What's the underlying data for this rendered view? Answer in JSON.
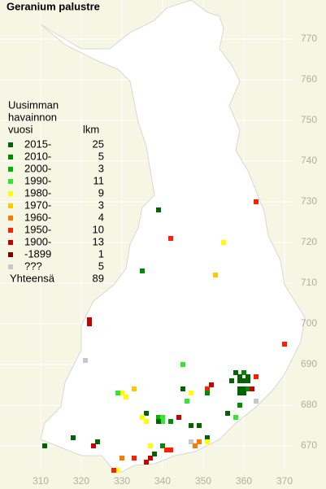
{
  "title": "Geranium palustre",
  "legend": {
    "heading": [
      "Uusimman",
      "havainnon",
      "vuosi"
    ],
    "count_heading": "lkm",
    "classes": [
      {
        "label": "2015-",
        "color": "#006400",
        "count": 25
      },
      {
        "label": "2010-",
        "color": "#008c00",
        "count": 5
      },
      {
        "label": "2000-",
        "color": "#00b400",
        "count": 3
      },
      {
        "label": "1990-",
        "color": "#33e633",
        "count": 11
      },
      {
        "label": "1980-",
        "color": "#ffff00",
        "count": 9
      },
      {
        "label": "1970-",
        "color": "#ffc800",
        "count": 3
      },
      {
        "label": "1960-",
        "color": "#ff7800",
        "count": 4
      },
      {
        "label": "1950-",
        "color": "#ff1e00",
        "count": 10
      },
      {
        "label": "1900-",
        "color": "#c80000",
        "count": 13
      },
      {
        "label": "-1899",
        "color": "#7a0000",
        "count": 1
      },
      {
        "label": "???",
        "color": "#c8c8c8",
        "count": 5
      }
    ],
    "total_label": "Yhteensä",
    "total": 89
  },
  "x_labels": [
    310,
    320,
    330,
    340,
    350,
    360,
    370
  ],
  "y_labels": [
    670,
    680,
    690,
    700,
    710,
    720,
    730,
    740,
    750,
    760,
    770
  ],
  "points": [
    {
      "e": 339,
      "n": 728,
      "class": 0
    },
    {
      "e": 342,
      "n": 721,
      "class": 7
    },
    {
      "e": 363,
      "n": 730,
      "class": 7
    },
    {
      "e": 355,
      "n": 720,
      "class": 4
    },
    {
      "e": 335,
      "n": 713,
      "class": 1
    },
    {
      "e": 353,
      "n": 712,
      "class": 5
    },
    {
      "e": 322,
      "n": 701,
      "class": 8
    },
    {
      "e": 322,
      "n": 700,
      "class": 8
    },
    {
      "e": 370,
      "n": 695,
      "class": 7
    },
    {
      "e": 321,
      "n": 691,
      "class": 10
    },
    {
      "e": 345,
      "n": 690,
      "class": 3
    },
    {
      "e": 358,
      "n": 688,
      "class": 0
    },
    {
      "e": 359,
      "n": 687,
      "class": 0
    },
    {
      "e": 360,
      "n": 688,
      "class": 1
    },
    {
      "e": 361,
      "n": 687,
      "class": 0
    },
    {
      "e": 359,
      "n": 686,
      "class": 0
    },
    {
      "e": 360,
      "n": 686,
      "class": 0
    },
    {
      "e": 361,
      "n": 686,
      "class": 0
    },
    {
      "e": 359,
      "n": 684,
      "class": 0
    },
    {
      "e": 360,
      "n": 684,
      "class": 0
    },
    {
      "e": 361,
      "n": 684,
      "class": 1
    },
    {
      "e": 360,
      "n": 683,
      "class": 0
    },
    {
      "e": 359,
      "n": 683,
      "class": 0
    },
    {
      "e": 363,
      "n": 687,
      "class": 7
    },
    {
      "e": 362,
      "n": 684,
      "class": 8
    },
    {
      "e": 357,
      "n": 686,
      "class": 0
    },
    {
      "e": 352,
      "n": 685,
      "class": 8
    },
    {
      "e": 351,
      "n": 684,
      "class": 7
    },
    {
      "e": 351,
      "n": 683,
      "class": 1
    },
    {
      "e": 363,
      "n": 681,
      "class": 10
    },
    {
      "e": 359,
      "n": 680,
      "class": 1
    },
    {
      "e": 358,
      "n": 677,
      "class": 3
    },
    {
      "e": 356,
      "n": 678,
      "class": 0
    },
    {
      "e": 345,
      "n": 684,
      "class": 0
    },
    {
      "e": 346,
      "n": 681,
      "class": 3
    },
    {
      "e": 347,
      "n": 683,
      "class": 4
    },
    {
      "e": 333,
      "n": 684,
      "class": 5
    },
    {
      "e": 330,
      "n": 683,
      "class": 4
    },
    {
      "e": 331,
      "n": 682,
      "class": 4
    },
    {
      "e": 329,
      "n": 683,
      "class": 3
    },
    {
      "e": 336,
      "n": 678,
      "class": 0
    },
    {
      "e": 335,
      "n": 677,
      "class": 4
    },
    {
      "e": 336,
      "n": 676,
      "class": 4
    },
    {
      "e": 339,
      "n": 677,
      "class": 2
    },
    {
      "e": 340,
      "n": 677,
      "class": 3
    },
    {
      "e": 340,
      "n": 676,
      "class": 3
    },
    {
      "e": 342,
      "n": 676,
      "class": 1
    },
    {
      "e": 344,
      "n": 677,
      "class": 8
    },
    {
      "e": 339,
      "n": 676,
      "class": 0
    },
    {
      "e": 347,
      "n": 675,
      "class": 0
    },
    {
      "e": 349,
      "n": 675,
      "class": 0
    },
    {
      "e": 318,
      "n": 672,
      "class": 0
    },
    {
      "e": 324,
      "n": 671,
      "class": 0
    },
    {
      "e": 323,
      "n": 670,
      "class": 8
    },
    {
      "e": 311,
      "n": 670,
      "class": 0
    },
    {
      "e": 351,
      "n": 672,
      "class": 0
    },
    {
      "e": 351,
      "n": 671,
      "class": 4
    },
    {
      "e": 347,
      "n": 671,
      "class": 10
    },
    {
      "e": 349,
      "n": 671,
      "class": 6
    },
    {
      "e": 348,
      "n": 670,
      "class": 6
    },
    {
      "e": 340,
      "n": 670,
      "class": 1
    },
    {
      "e": 342,
      "n": 669,
      "class": 7
    },
    {
      "e": 341,
      "n": 669,
      "class": 7
    },
    {
      "e": 337,
      "n": 670,
      "class": 4
    },
    {
      "e": 330,
      "n": 667,
      "class": 6
    },
    {
      "e": 333,
      "n": 667,
      "class": 7
    },
    {
      "e": 337,
      "n": 667,
      "class": 8
    },
    {
      "e": 336,
      "n": 666,
      "class": 8
    },
    {
      "e": 338,
      "n": 668,
      "class": 0
    },
    {
      "e": 329,
      "n": 664,
      "class": 4
    },
    {
      "e": 328,
      "n": 664,
      "class": 7
    }
  ]
}
